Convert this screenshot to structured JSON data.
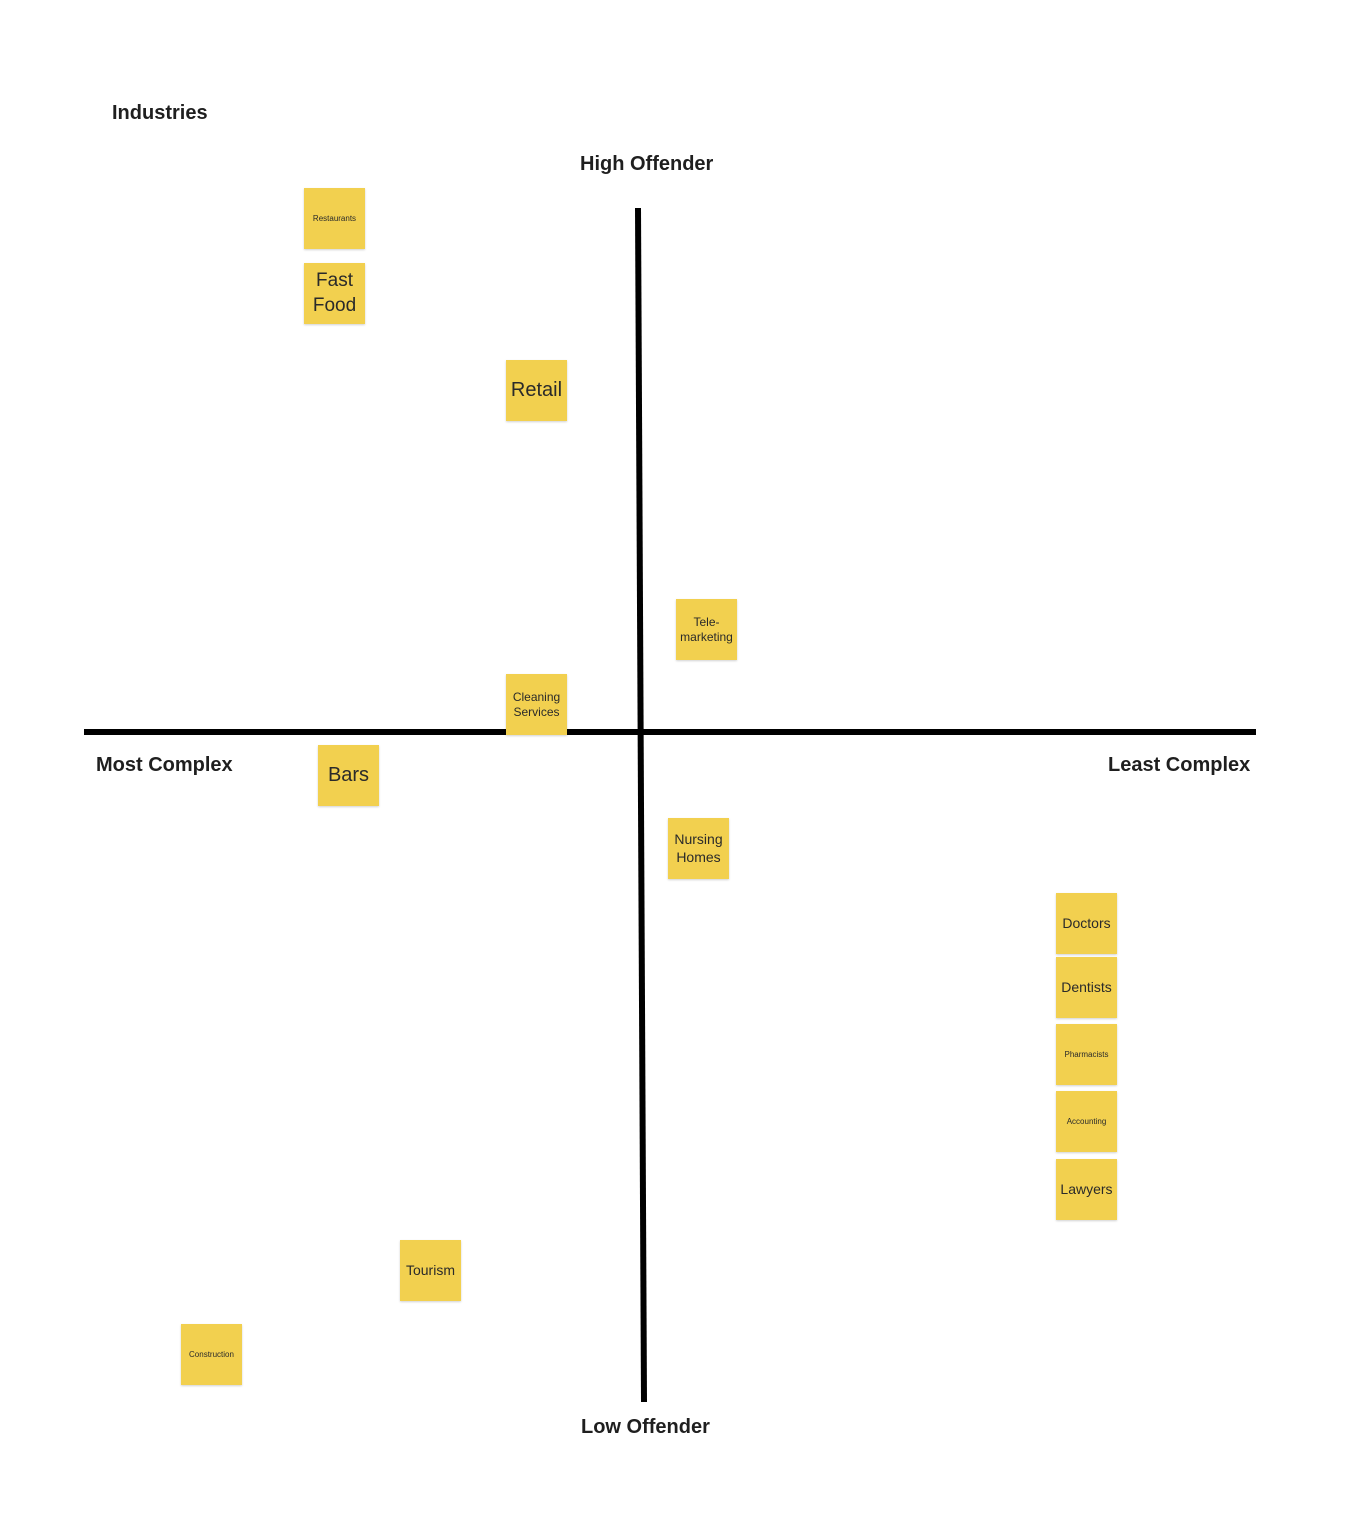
{
  "board": {
    "title": "Industries"
  },
  "axes": {
    "top": "High Offender",
    "bottom": "Low Offender",
    "left": "Most Complex",
    "right": "Least Complex",
    "line_color": "#000000"
  },
  "note_color": "#f2d04f",
  "notes": [
    {
      "label": "Restaurants"
    },
    {
      "label": "Fast Food"
    },
    {
      "label": "Retail"
    },
    {
      "label": "Tele-\nmarketing"
    },
    {
      "label": "Cleaning Services"
    },
    {
      "label": "Bars"
    },
    {
      "label": "Nursing Homes"
    },
    {
      "label": "Doctors"
    },
    {
      "label": "Dentists"
    },
    {
      "label": "Pharmacists"
    },
    {
      "label": "Accounting"
    },
    {
      "label": "Lawyers"
    },
    {
      "label": "Tourism"
    },
    {
      "label": "Construction"
    }
  ]
}
